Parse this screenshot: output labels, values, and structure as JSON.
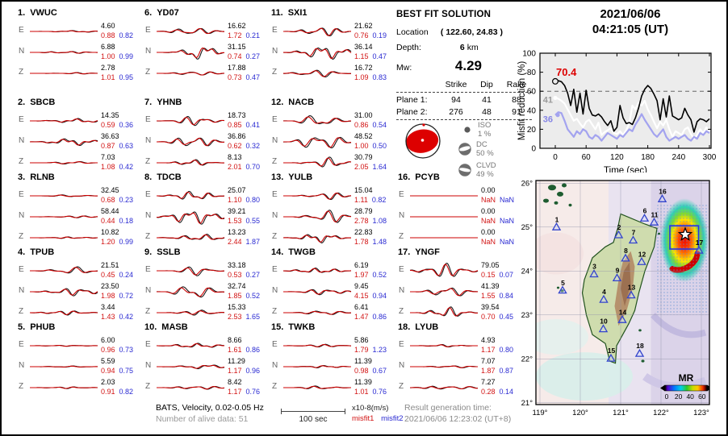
{
  "title": {
    "date": "2021/06/06",
    "time": "04:21:05  (UT)"
  },
  "best_fit": {
    "heading": "BEST FIT SOLUTION",
    "location_label": "Location",
    "location_value": "( 122.60,  24.83 )",
    "depth_label": "Depth:",
    "depth_value": "6",
    "depth_unit": "km",
    "mw_label": "Mw:",
    "mw_value": "4.29",
    "table": {
      "headers": [
        "Strike",
        "Dip",
        "Rake"
      ],
      "rows": [
        {
          "label": "Plane 1:",
          "strike": "94",
          "dip": "41",
          "rake": "88"
        },
        {
          "label": "Plane 2:",
          "strike": "276",
          "dip": "48",
          "rake": "91"
        }
      ]
    },
    "components": [
      {
        "name": "ISO",
        "pct": "1 %"
      },
      {
        "name": "DC",
        "pct": "50 %"
      },
      {
        "name": "CLVD",
        "pct": "49 %"
      }
    ]
  },
  "stations": [
    {
      "num": "1.",
      "name": "VWUC",
      "col": 0,
      "row": 0,
      "channels": [
        {
          "ch": "E",
          "amp": "4.60",
          "m1": "0.88",
          "m2": "0.82",
          "w": 0.12
        },
        {
          "ch": "N",
          "amp": "6.88",
          "m1": "1.00",
          "m2": "0.99",
          "w": 0.14
        },
        {
          "ch": "Z",
          "amp": "2.78",
          "m1": "1.01",
          "m2": "0.95",
          "w": 0.1
        }
      ]
    },
    {
      "num": "2.",
      "name": "SBCB",
      "col": 0,
      "row": 1,
      "channels": [
        {
          "ch": "E",
          "amp": "14.35",
          "m1": "0.59",
          "m2": "0.36",
          "w": 0.3
        },
        {
          "ch": "N",
          "amp": "36.63",
          "m1": "0.87",
          "m2": "0.63",
          "w": 0.5
        },
        {
          "ch": "Z",
          "amp": "7.03",
          "m1": "1.08",
          "m2": "0.42",
          "w": 0.22
        }
      ]
    },
    {
      "num": "3.",
      "name": "RLNB",
      "col": 0,
      "row": 2,
      "channels": [
        {
          "ch": "E",
          "amp": "32.45",
          "m1": "0.68",
          "m2": "0.23",
          "w": 0.15
        },
        {
          "ch": "N",
          "amp": "58.44",
          "m1": "0.44",
          "m2": "0.18",
          "w": 0.13
        },
        {
          "ch": "Z",
          "amp": "10.82",
          "m1": "1.20",
          "m2": "0.99",
          "w": 0.12
        }
      ]
    },
    {
      "num": "4.",
      "name": "TPUB",
      "col": 0,
      "row": 3,
      "channels": [
        {
          "ch": "E",
          "amp": "21.51",
          "m1": "0.45",
          "m2": "0.24",
          "w": 0.5
        },
        {
          "ch": "N",
          "amp": "23.50",
          "m1": "1.98",
          "m2": "0.72",
          "w": 0.55
        },
        {
          "ch": "Z",
          "amp": "3.44",
          "m1": "1.43",
          "m2": "0.42",
          "w": 0.3
        }
      ]
    },
    {
      "num": "5.",
      "name": "PHUB",
      "col": 0,
      "row": 4,
      "channels": [
        {
          "ch": "E",
          "amp": "6.00",
          "m1": "0.96",
          "m2": "0.73",
          "w": 0.07
        },
        {
          "ch": "N",
          "amp": "5.59",
          "m1": "0.94",
          "m2": "0.75",
          "w": 0.09
        },
        {
          "ch": "Z",
          "amp": "2.03",
          "m1": "0.91",
          "m2": "0.82",
          "w": 0.12
        }
      ]
    },
    {
      "num": "6.",
      "name": "YD07",
      "col": 1,
      "row": 0,
      "channels": [
        {
          "ch": "E",
          "amp": "16.62",
          "m1": "1.72",
          "m2": "0.21",
          "w": 0.75
        },
        {
          "ch": "N",
          "amp": "31.15",
          "m1": "0.74",
          "m2": "0.27",
          "w": 1.0
        },
        {
          "ch": "Z",
          "amp": "17.88",
          "m1": "0.73",
          "m2": "0.47",
          "w": 0.55
        }
      ]
    },
    {
      "num": "7.",
      "name": "YHNB",
      "col": 1,
      "row": 1,
      "channels": [
        {
          "ch": "E",
          "amp": "18.73",
          "m1": "0.85",
          "m2": "0.41",
          "w": 0.7
        },
        {
          "ch": "N",
          "amp": "36.86",
          "m1": "0.62",
          "m2": "0.32",
          "w": 0.95
        },
        {
          "ch": "Z",
          "amp": "8.13",
          "m1": "2.01",
          "m2": "0.70",
          "w": 0.45
        }
      ]
    },
    {
      "num": "8.",
      "name": "TDCB",
      "col": 1,
      "row": 2,
      "channels": [
        {
          "ch": "E",
          "amp": "25.07",
          "m1": "1.10",
          "m2": "0.80",
          "w": 0.65
        },
        {
          "ch": "N",
          "amp": "39.21",
          "m1": "1.53",
          "m2": "0.55",
          "w": 1.0
        },
        {
          "ch": "Z",
          "amp": "13.23",
          "m1": "2.44",
          "m2": "1.87",
          "w": 0.45
        }
      ]
    },
    {
      "num": "9.",
      "name": "SSLB",
      "col": 1,
      "row": 3,
      "channels": [
        {
          "ch": "E",
          "amp": "33.18",
          "m1": "0.53",
          "m2": "0.27",
          "w": 0.7
        },
        {
          "ch": "N",
          "amp": "32.74",
          "m1": "1.85",
          "m2": "0.52",
          "w": 0.95
        },
        {
          "ch": "Z",
          "amp": "15.33",
          "m1": "2.53",
          "m2": "1.65",
          "w": 0.5
        }
      ]
    },
    {
      "num": "10.",
      "name": "MASB",
      "col": 1,
      "row": 4,
      "channels": [
        {
          "ch": "E",
          "amp": "8.66",
          "m1": "1.61",
          "m2": "0.86",
          "w": 0.32
        },
        {
          "ch": "N",
          "amp": "11.29",
          "m1": "1.17",
          "m2": "0.96",
          "w": 0.3
        },
        {
          "ch": "Z",
          "amp": "8.42",
          "m1": "1.17",
          "m2": "0.76",
          "w": 0.3
        }
      ]
    },
    {
      "num": "11.",
      "name": "SXI1",
      "col": 2,
      "row": 0,
      "channels": [
        {
          "ch": "E",
          "amp": "21.62",
          "m1": "0.76",
          "m2": "0.19",
          "w": 0.8
        },
        {
          "ch": "N",
          "amp": "36.14",
          "m1": "1.15",
          "m2": "0.47",
          "w": 0.95
        },
        {
          "ch": "Z",
          "amp": "16.72",
          "m1": "1.09",
          "m2": "0.83",
          "w": 0.5
        }
      ]
    },
    {
      "num": "12.",
      "name": "NACB",
      "col": 2,
      "row": 1,
      "channels": [
        {
          "ch": "E",
          "amp": "31.00",
          "m1": "0.86",
          "m2": "0.54",
          "w": 0.85
        },
        {
          "ch": "N",
          "amp": "48.52",
          "m1": "1.00",
          "m2": "0.50",
          "w": 1.0
        },
        {
          "ch": "Z",
          "amp": "30.79",
          "m1": "2.05",
          "m2": "1.64",
          "w": 0.75
        }
      ]
    },
    {
      "num": "13.",
      "name": "YULB",
      "col": 2,
      "row": 2,
      "channels": [
        {
          "ch": "E",
          "amp": "15.04",
          "m1": "1.11",
          "m2": "0.82",
          "w": 0.55
        },
        {
          "ch": "N",
          "amp": "28.79",
          "m1": "2.78",
          "m2": "1.08",
          "w": 0.9
        },
        {
          "ch": "Z",
          "amp": "22.83",
          "m1": "1.78",
          "m2": "1.48",
          "w": 0.65
        }
      ]
    },
    {
      "num": "14.",
      "name": "TWGB",
      "col": 2,
      "row": 3,
      "channels": [
        {
          "ch": "E",
          "amp": "6.19",
          "m1": "1.97",
          "m2": "0.52",
          "w": 0.35
        },
        {
          "ch": "N",
          "amp": "9.45",
          "m1": "4.15",
          "m2": "0.94",
          "w": 0.45
        },
        {
          "ch": "Z",
          "amp": "6.41",
          "m1": "1.47",
          "m2": "0.86",
          "w": 0.35
        }
      ]
    },
    {
      "num": "15.",
      "name": "TWKB",
      "col": 2,
      "row": 4,
      "channels": [
        {
          "ch": "E",
          "amp": "5.86",
          "m1": "1.79",
          "m2": "1.23",
          "w": 0.18
        },
        {
          "ch": "N",
          "amp": "11.39",
          "m1": "0.98",
          "m2": "0.67",
          "w": 0.18
        },
        {
          "ch": "Z",
          "amp": "11.39",
          "m1": "1.01",
          "m2": "0.76",
          "w": 0.28
        }
      ]
    },
    {
      "num": "16.",
      "name": "PCYB",
      "col": 3,
      "row": 2,
      "channels": [
        {
          "ch": "E",
          "amp": "0.00",
          "m1": "NaN",
          "m2": "NaN",
          "w": 0
        },
        {
          "ch": "N",
          "amp": "0.00",
          "m1": "NaN",
          "m2": "NaN",
          "w": 0
        },
        {
          "ch": "Z",
          "amp": "0.00",
          "m1": "NaN",
          "m2": "NaN",
          "w": 0
        }
      ]
    },
    {
      "num": "17.",
      "name": "YNGF",
      "col": 3,
      "row": 3,
      "channels": [
        {
          "ch": "E",
          "amp": "79.05",
          "m1": "0.15",
          "m2": "0.07",
          "w": 0.95
        },
        {
          "ch": "N",
          "amp": "41.39",
          "m1": "1.55",
          "m2": "0.84",
          "w": 0.75
        },
        {
          "ch": "Z",
          "amp": "39.54",
          "m1": "0.70",
          "m2": "0.45",
          "w": 0.75
        }
      ]
    },
    {
      "num": "18.",
      "name": "LYUB",
      "col": 3,
      "row": 4,
      "channels": [
        {
          "ch": "E",
          "amp": "4.93",
          "m1": "1.17",
          "m2": "0.80",
          "w": 0.18
        },
        {
          "ch": "N",
          "amp": "7.07",
          "m1": "1.87",
          "m2": "0.87",
          "w": 0.18
        },
        {
          "ch": "Z",
          "amp": "7.27",
          "m1": "0.28",
          "m2": "0.14",
          "w": 0.35
        }
      ]
    }
  ],
  "chart_data": {
    "type": "line",
    "xlabel": "Time (sec)",
    "ylabel": "Misfit reduction (%)",
    "xlim": [
      0,
      300
    ],
    "ylim": [
      0,
      100
    ],
    "xticks": [
      0,
      60,
      120,
      180,
      240,
      300
    ],
    "yticks": [
      0,
      20,
      40,
      60,
      80,
      100
    ],
    "ref_line_y": 60,
    "grid": false,
    "x": [
      0,
      6,
      12,
      18,
      24,
      30,
      36,
      42,
      48,
      54,
      60,
      66,
      72,
      78,
      84,
      90,
      96,
      102,
      108,
      114,
      120,
      126,
      132,
      138,
      144,
      150,
      156,
      162,
      168,
      174,
      180,
      186,
      192,
      198,
      204,
      210,
      216,
      222,
      228,
      234,
      240,
      246,
      252,
      258,
      264,
      270,
      276,
      282,
      288,
      294,
      300
    ],
    "series": [
      {
        "name": "best-solution-misfit-reduction",
        "color": "#000000",
        "width": 1.6,
        "label": "70.4",
        "label_color": "#dd0000",
        "marker": "open",
        "values": [
          70.4,
          71,
          70,
          66,
          58,
          45,
          62,
          38,
          58,
          36,
          61,
          42,
          35,
          34,
          36,
          33,
          28,
          24,
          29,
          18,
          22,
          45,
          32,
          26,
          27,
          25,
          32,
          42,
          55,
          62,
          66,
          63,
          57,
          50,
          30,
          52,
          33,
          55,
          34,
          32,
          30,
          32,
          42,
          35,
          30,
          17,
          28,
          31,
          30,
          28,
          31
        ]
      },
      {
        "name": "reference-solution-1",
        "color": "#ffffff",
        "width": 2.2,
        "label": "41",
        "label_color": "#9a9a9a",
        "marker": "filled",
        "values": [
          53,
          52,
          50,
          47,
          41,
          35,
          29,
          31,
          26,
          22,
          28,
          30,
          25,
          20,
          27,
          14,
          17,
          19,
          21,
          16,
          15,
          18,
          14,
          19,
          26,
          45,
          41,
          48,
          45,
          50,
          41,
          35,
          28,
          21,
          28,
          24,
          30,
          20,
          12,
          18,
          16,
          14,
          20,
          22,
          15,
          10,
          14,
          20,
          16,
          22,
          18
        ]
      },
      {
        "name": "reference-solution-2",
        "color": "#a3a3ef",
        "width": 2.2,
        "label": "36",
        "label_color": "#8585e5",
        "marker": "filled",
        "values": [
          35,
          38,
          37,
          29,
          20,
          16,
          12,
          18,
          15,
          20,
          18,
          12,
          10,
          14,
          12,
          8,
          12,
          16,
          14,
          12,
          10,
          14,
          12,
          16,
          20,
          18,
          25,
          30,
          36,
          30,
          25,
          20,
          15,
          12,
          16,
          20,
          12,
          8,
          10,
          12,
          10,
          12,
          14,
          10,
          8,
          12,
          10,
          16,
          14,
          18,
          16
        ]
      }
    ]
  },
  "map": {
    "lat_ticks": [
      {
        "v": 26,
        "label": "26°"
      },
      {
        "v": 25,
        "label": "25°"
      },
      {
        "v": 24,
        "label": "24°"
      },
      {
        "v": 23,
        "label": "23°"
      },
      {
        "v": 22,
        "label": "22°"
      },
      {
        "v": 21,
        "label": "21°"
      }
    ],
    "lon_ticks": [
      {
        "v": 119,
        "label": "119°"
      },
      {
        "v": 120,
        "label": "120°"
      },
      {
        "v": 121,
        "label": "121°"
      },
      {
        "v": 122,
        "label": "122°"
      },
      {
        "v": 123,
        "label": "123°"
      }
    ],
    "stations": [
      {
        "n": "1",
        "lon": 119.41,
        "lat": 25.0
      },
      {
        "n": "2",
        "lon": 120.95,
        "lat": 24.82
      },
      {
        "n": "3",
        "lon": 120.34,
        "lat": 23.93
      },
      {
        "n": "4",
        "lon": 120.58,
        "lat": 23.35
      },
      {
        "n": "5",
        "lon": 119.56,
        "lat": 23.56
      },
      {
        "n": "6",
        "lon": 121.59,
        "lat": 25.2
      },
      {
        "n": "7",
        "lon": 121.31,
        "lat": 24.7
      },
      {
        "n": "8",
        "lon": 121.12,
        "lat": 24.29
      },
      {
        "n": "9",
        "lon": 120.91,
        "lat": 23.84
      },
      {
        "n": "10",
        "lon": 120.57,
        "lat": 22.68
      },
      {
        "n": "11",
        "lon": 121.83,
        "lat": 25.11
      },
      {
        "n": "12",
        "lon": 121.52,
        "lat": 24.21
      },
      {
        "n": "13",
        "lon": 121.26,
        "lat": 23.45
      },
      {
        "n": "14",
        "lon": 121.04,
        "lat": 22.89
      },
      {
        "n": "15",
        "lon": 120.76,
        "lat": 22.01
      },
      {
        "n": "16",
        "lon": 122.03,
        "lat": 25.64
      },
      {
        "n": "17",
        "lon": 122.94,
        "lat": 24.47
      },
      {
        "n": "18",
        "lon": 121.47,
        "lat": 22.12
      }
    ],
    "epicenter": {
      "lon": 122.6,
      "lat": 24.83
    },
    "search_box": {
      "lon_min": 122.22,
      "lat_min": 24.5,
      "lon_max": 122.93,
      "lat_max": 25.03
    },
    "colorbar": {
      "label": "MR",
      "ticks": [
        "0",
        "20",
        "40",
        "60"
      ]
    }
  },
  "footer": {
    "line1": "BATS, Velocity, 0.02-0.05 Hz",
    "line2": "Number of alive data: 51",
    "scale_label": "100 sec",
    "unit_label": "x10-8(m/s)",
    "misfit1_label": "misfit1",
    "misfit2_label": "misfit2",
    "result_label": "Result generation time:",
    "result_value": "2021/06/06  12:23:02 (UT+8)"
  }
}
